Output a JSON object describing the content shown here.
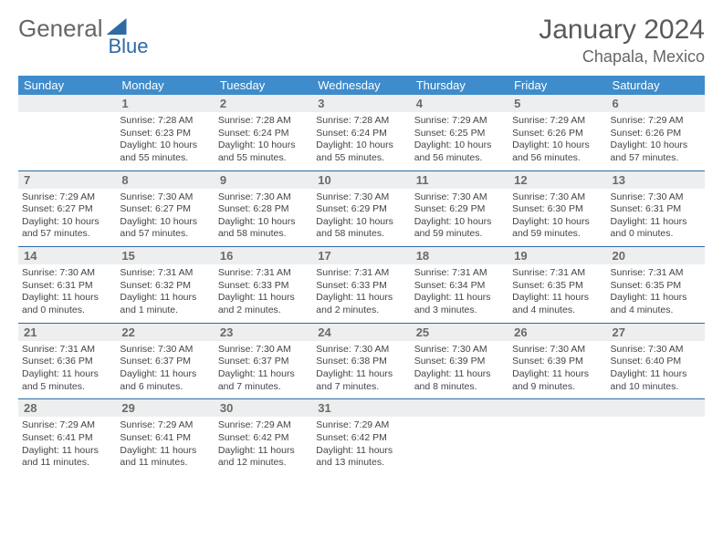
{
  "brand": {
    "part1": "General",
    "part2": "Blue"
  },
  "title": "January 2024",
  "location": "Chapala, Mexico",
  "colors": {
    "header_bg": "#3e8ccb",
    "rule": "#2e6aa5",
    "daynum_bg": "#eceeef",
    "text": "#444"
  },
  "day_headers": [
    "Sunday",
    "Monday",
    "Tuesday",
    "Wednesday",
    "Thursday",
    "Friday",
    "Saturday"
  ],
  "weeks": [
    {
      "nums": [
        "",
        "1",
        "2",
        "3",
        "4",
        "5",
        "6"
      ],
      "cells": [
        null,
        {
          "sunrise": "Sunrise: 7:28 AM",
          "sunset": "Sunset: 6:23 PM",
          "day1": "Daylight: 10 hours",
          "day2": "and 55 minutes."
        },
        {
          "sunrise": "Sunrise: 7:28 AM",
          "sunset": "Sunset: 6:24 PM",
          "day1": "Daylight: 10 hours",
          "day2": "and 55 minutes."
        },
        {
          "sunrise": "Sunrise: 7:28 AM",
          "sunset": "Sunset: 6:24 PM",
          "day1": "Daylight: 10 hours",
          "day2": "and 55 minutes."
        },
        {
          "sunrise": "Sunrise: 7:29 AM",
          "sunset": "Sunset: 6:25 PM",
          "day1": "Daylight: 10 hours",
          "day2": "and 56 minutes."
        },
        {
          "sunrise": "Sunrise: 7:29 AM",
          "sunset": "Sunset: 6:26 PM",
          "day1": "Daylight: 10 hours",
          "day2": "and 56 minutes."
        },
        {
          "sunrise": "Sunrise: 7:29 AM",
          "sunset": "Sunset: 6:26 PM",
          "day1": "Daylight: 10 hours",
          "day2": "and 57 minutes."
        }
      ]
    },
    {
      "nums": [
        "7",
        "8",
        "9",
        "10",
        "11",
        "12",
        "13"
      ],
      "cells": [
        {
          "sunrise": "Sunrise: 7:29 AM",
          "sunset": "Sunset: 6:27 PM",
          "day1": "Daylight: 10 hours",
          "day2": "and 57 minutes."
        },
        {
          "sunrise": "Sunrise: 7:30 AM",
          "sunset": "Sunset: 6:27 PM",
          "day1": "Daylight: 10 hours",
          "day2": "and 57 minutes."
        },
        {
          "sunrise": "Sunrise: 7:30 AM",
          "sunset": "Sunset: 6:28 PM",
          "day1": "Daylight: 10 hours",
          "day2": "and 58 minutes."
        },
        {
          "sunrise": "Sunrise: 7:30 AM",
          "sunset": "Sunset: 6:29 PM",
          "day1": "Daylight: 10 hours",
          "day2": "and 58 minutes."
        },
        {
          "sunrise": "Sunrise: 7:30 AM",
          "sunset": "Sunset: 6:29 PM",
          "day1": "Daylight: 10 hours",
          "day2": "and 59 minutes."
        },
        {
          "sunrise": "Sunrise: 7:30 AM",
          "sunset": "Sunset: 6:30 PM",
          "day1": "Daylight: 10 hours",
          "day2": "and 59 minutes."
        },
        {
          "sunrise": "Sunrise: 7:30 AM",
          "sunset": "Sunset: 6:31 PM",
          "day1": "Daylight: 11 hours",
          "day2": "and 0 minutes."
        }
      ]
    },
    {
      "nums": [
        "14",
        "15",
        "16",
        "17",
        "18",
        "19",
        "20"
      ],
      "cells": [
        {
          "sunrise": "Sunrise: 7:30 AM",
          "sunset": "Sunset: 6:31 PM",
          "day1": "Daylight: 11 hours",
          "day2": "and 0 minutes."
        },
        {
          "sunrise": "Sunrise: 7:31 AM",
          "sunset": "Sunset: 6:32 PM",
          "day1": "Daylight: 11 hours",
          "day2": "and 1 minute."
        },
        {
          "sunrise": "Sunrise: 7:31 AM",
          "sunset": "Sunset: 6:33 PM",
          "day1": "Daylight: 11 hours",
          "day2": "and 2 minutes."
        },
        {
          "sunrise": "Sunrise: 7:31 AM",
          "sunset": "Sunset: 6:33 PM",
          "day1": "Daylight: 11 hours",
          "day2": "and 2 minutes."
        },
        {
          "sunrise": "Sunrise: 7:31 AM",
          "sunset": "Sunset: 6:34 PM",
          "day1": "Daylight: 11 hours",
          "day2": "and 3 minutes."
        },
        {
          "sunrise": "Sunrise: 7:31 AM",
          "sunset": "Sunset: 6:35 PM",
          "day1": "Daylight: 11 hours",
          "day2": "and 4 minutes."
        },
        {
          "sunrise": "Sunrise: 7:31 AM",
          "sunset": "Sunset: 6:35 PM",
          "day1": "Daylight: 11 hours",
          "day2": "and 4 minutes."
        }
      ]
    },
    {
      "nums": [
        "21",
        "22",
        "23",
        "24",
        "25",
        "26",
        "27"
      ],
      "cells": [
        {
          "sunrise": "Sunrise: 7:31 AM",
          "sunset": "Sunset: 6:36 PM",
          "day1": "Daylight: 11 hours",
          "day2": "and 5 minutes."
        },
        {
          "sunrise": "Sunrise: 7:30 AM",
          "sunset": "Sunset: 6:37 PM",
          "day1": "Daylight: 11 hours",
          "day2": "and 6 minutes."
        },
        {
          "sunrise": "Sunrise: 7:30 AM",
          "sunset": "Sunset: 6:37 PM",
          "day1": "Daylight: 11 hours",
          "day2": "and 7 minutes."
        },
        {
          "sunrise": "Sunrise: 7:30 AM",
          "sunset": "Sunset: 6:38 PM",
          "day1": "Daylight: 11 hours",
          "day2": "and 7 minutes."
        },
        {
          "sunrise": "Sunrise: 7:30 AM",
          "sunset": "Sunset: 6:39 PM",
          "day1": "Daylight: 11 hours",
          "day2": "and 8 minutes."
        },
        {
          "sunrise": "Sunrise: 7:30 AM",
          "sunset": "Sunset: 6:39 PM",
          "day1": "Daylight: 11 hours",
          "day2": "and 9 minutes."
        },
        {
          "sunrise": "Sunrise: 7:30 AM",
          "sunset": "Sunset: 6:40 PM",
          "day1": "Daylight: 11 hours",
          "day2": "and 10 minutes."
        }
      ]
    },
    {
      "nums": [
        "28",
        "29",
        "30",
        "31",
        "",
        "",
        ""
      ],
      "cells": [
        {
          "sunrise": "Sunrise: 7:29 AM",
          "sunset": "Sunset: 6:41 PM",
          "day1": "Daylight: 11 hours",
          "day2": "and 11 minutes."
        },
        {
          "sunrise": "Sunrise: 7:29 AM",
          "sunset": "Sunset: 6:41 PM",
          "day1": "Daylight: 11 hours",
          "day2": "and 11 minutes."
        },
        {
          "sunrise": "Sunrise: 7:29 AM",
          "sunset": "Sunset: 6:42 PM",
          "day1": "Daylight: 11 hours",
          "day2": "and 12 minutes."
        },
        {
          "sunrise": "Sunrise: 7:29 AM",
          "sunset": "Sunset: 6:42 PM",
          "day1": "Daylight: 11 hours",
          "day2": "and 13 minutes."
        },
        null,
        null,
        null
      ]
    }
  ]
}
